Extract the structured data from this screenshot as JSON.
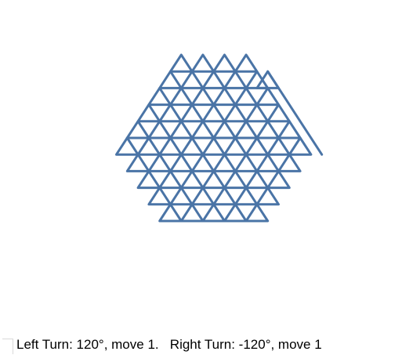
{
  "figure": {
    "stroke_color": "#4a74a6",
    "shape": "triangle-lattice",
    "row_triangle_counts": [
      4,
      5,
      6,
      7,
      8,
      9,
      8,
      7,
      6,
      5
    ],
    "extra_triangle": "upper-right"
  },
  "caption": {
    "text": "Left Turn: 120°, move 1.   Right Turn: -120°, move 1"
  }
}
